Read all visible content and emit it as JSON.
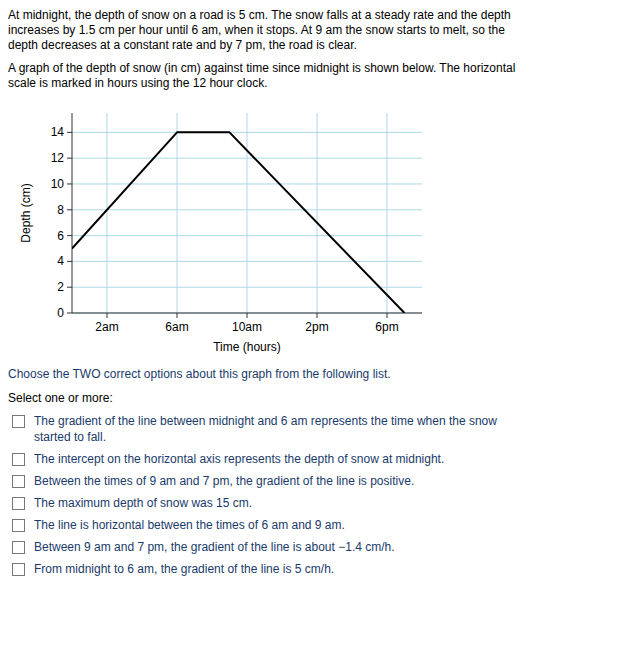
{
  "chart_data": {
    "type": "line",
    "x": [
      0,
      6,
      9,
      19
    ],
    "values": [
      5,
      14,
      14,
      0
    ],
    "color": "#000000",
    "xlabel": "Time (hours)",
    "ylabel": "Depth (cm)",
    "xlim": [
      0,
      20
    ],
    "ylim": [
      0,
      15.5
    ],
    "xticks": [
      {
        "value": 2,
        "label": "2am"
      },
      {
        "value": 6,
        "label": "6am"
      },
      {
        "value": 10,
        "label": "10am"
      },
      {
        "value": 14,
        "label": "2pm"
      },
      {
        "value": 18,
        "label": "6pm"
      }
    ],
    "yticks": [
      0,
      2,
      4,
      6,
      8,
      10,
      12,
      14
    ],
    "grid": true
  },
  "paragraphs": [
    [
      "At midnight, the depth of snow on a road is 5 cm. The snow falls at a steady rate and the depth",
      "increases by 1.5 cm per hour until 6 am, when it stops. At 9 am the snow starts to melt, so the",
      "depth decreases at a constant rate and by 7 pm, the road is clear."
    ],
    [
      "A graph of the depth of snow (in cm) against time since midnight is shown below. The horizontal",
      "scale is marked in hours using the 12 hour clock."
    ]
  ],
  "question": "Choose the TWO correct options about this graph from the following list.",
  "prompt": "Select one or more:",
  "options": [
    "The gradient of the line between midnight and 6 am represents the time when the snow\nstarted to fall.",
    "The intercept on the horizontal axis represents the depth of snow at midnight.",
    "Between the times of 9 am and 7 pm, the gradient of the line is positive.",
    "The maximum depth of snow was 15 cm.",
    "The line is horizontal between the times of 6 am and 9 am.",
    "Between 9 am and 7 pm, the gradient of the line is about −1.4 cm/h.",
    "From midnight to 6 am, the gradient of the line is 5 cm/h."
  ]
}
